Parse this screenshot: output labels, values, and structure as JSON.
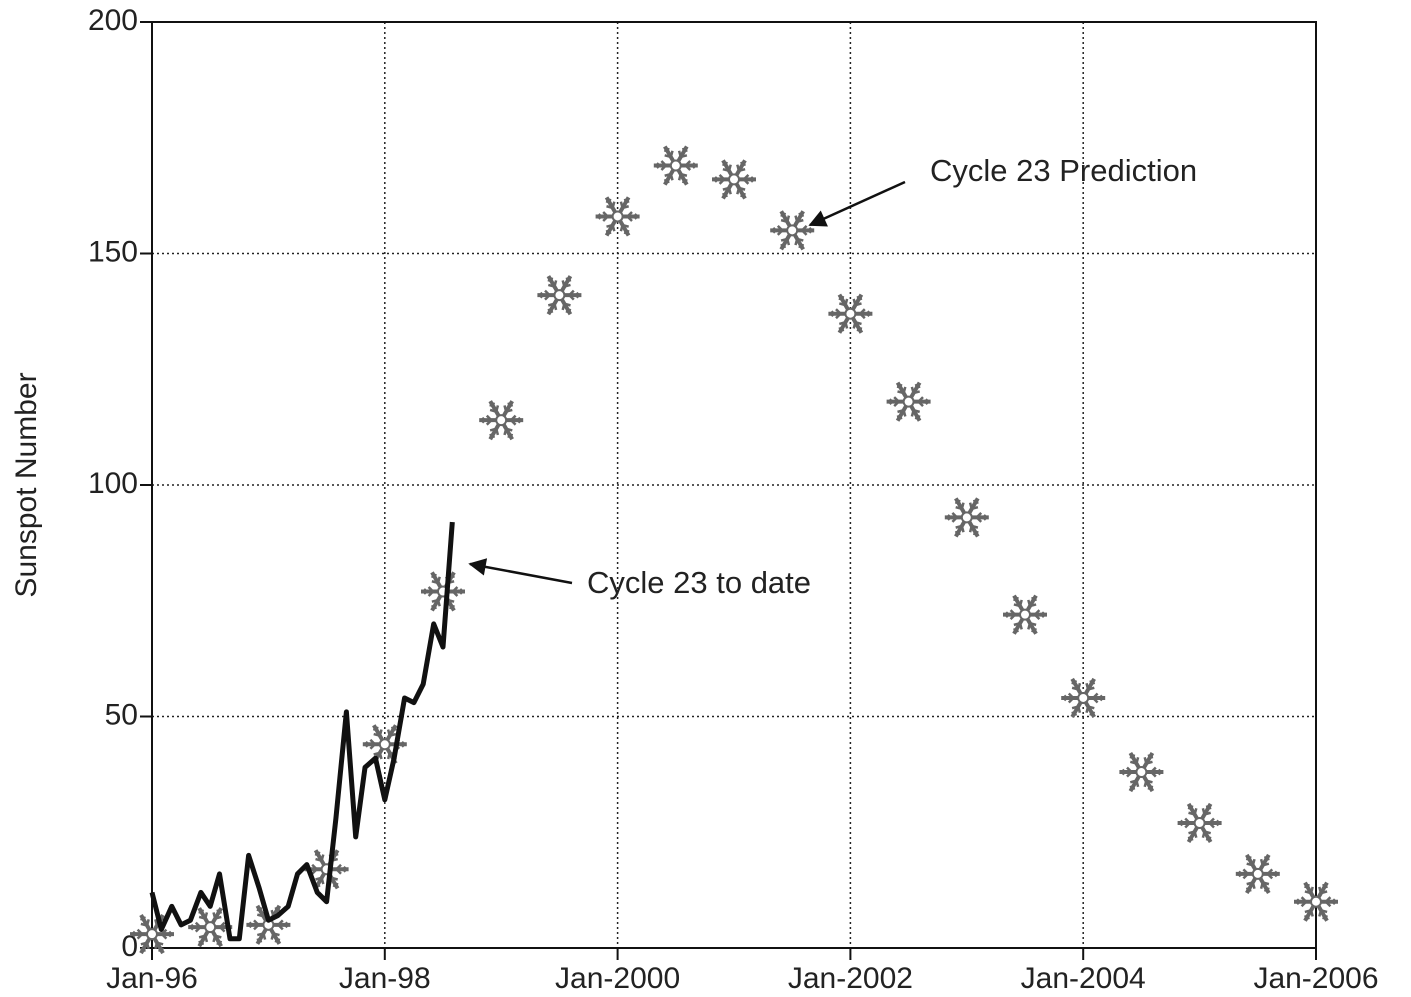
{
  "chart_data": {
    "type": "line",
    "y_label": "Sunspot Number",
    "xlim": [
      1996,
      2006
    ],
    "ylim": [
      0,
      200
    ],
    "xticks": [
      {
        "value": 1996,
        "label": "Jan-96"
      },
      {
        "value": 1998,
        "label": "Jan-98"
      },
      {
        "value": 2000,
        "label": "Jan-2000"
      },
      {
        "value": 2002,
        "label": "Jan-2002"
      },
      {
        "value": 2004,
        "label": "Jan-2004"
      },
      {
        "value": 2006,
        "label": "Jan-2006"
      }
    ],
    "yticks": [
      0,
      50,
      100,
      150,
      200
    ],
    "grid": true,
    "series": [
      {
        "color": "#111111",
        "marker": "none",
        "x": [
          1996,
          1996.08,
          1996.17,
          1996.25,
          1996.33,
          1996.42,
          1996.5,
          1996.58,
          1996.67,
          1996.75,
          1996.83,
          1996.92,
          1997,
          1997.08,
          1997.17,
          1997.25,
          1997.33,
          1997.42,
          1997.5,
          1997.58,
          1997.67,
          1997.75,
          1997.83,
          1997.92,
          1998,
          1998.08,
          1998.17,
          1998.25,
          1998.33,
          1998.42,
          1998.5,
          1998.58
        ],
        "values": [
          12,
          4,
          9,
          5,
          6,
          12,
          9,
          16,
          2,
          2,
          20,
          13,
          6,
          7,
          9,
          16,
          18,
          12,
          10,
          28,
          51,
          24,
          39,
          41,
          32,
          41,
          54,
          53,
          57,
          70,
          65,
          92
        ]
      },
      {
        "color": "#666666",
        "marker": "snowflake",
        "x": [
          1996,
          1996.5,
          1997,
          1997.5,
          1998,
          1998.5,
          1999,
          1999.5,
          2000,
          2000.5,
          2001,
          2001.5,
          2002,
          2002.5,
          2003,
          2003.5,
          2004,
          2004.5,
          2005,
          2005.5,
          2006
        ],
        "values": [
          3,
          4.5,
          5,
          17,
          44,
          77,
          114,
          141,
          158,
          169,
          166,
          155,
          137,
          118,
          93,
          72,
          54,
          38,
          27,
          16,
          10
        ]
      }
    ],
    "annotations": [
      {
        "text": "Cycle 23 Prediction"
      },
      {
        "text": "Cycle 23 to date"
      }
    ]
  }
}
